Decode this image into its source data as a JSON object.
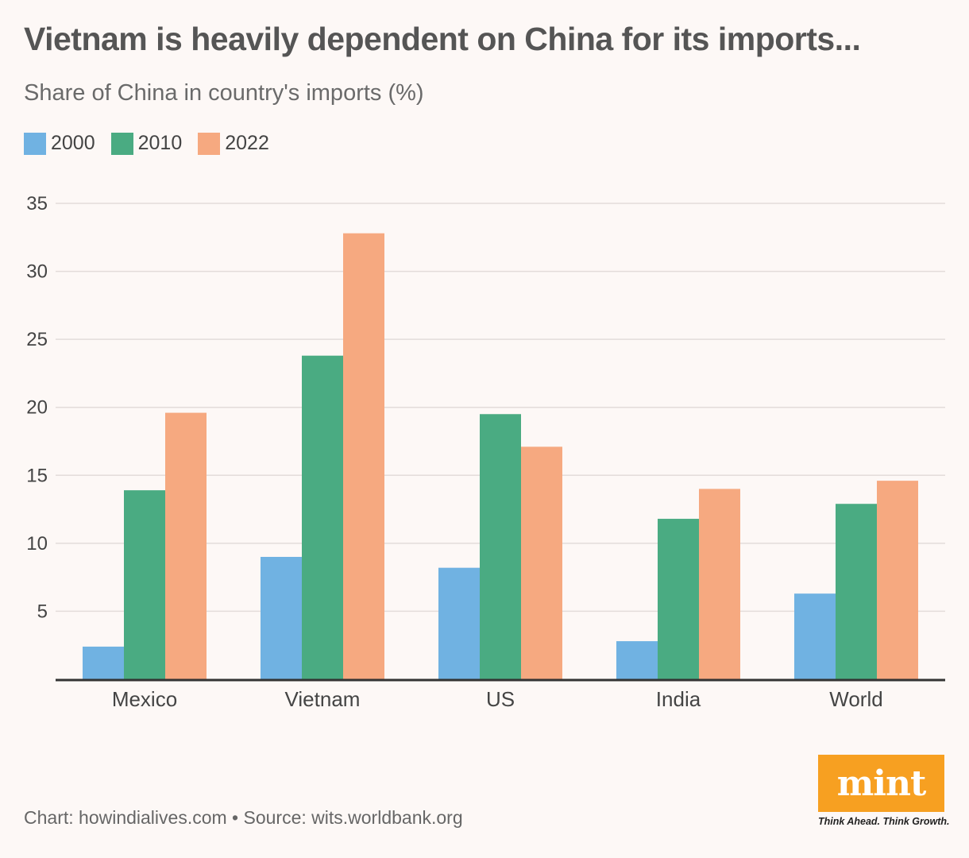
{
  "header": {
    "title": "Vietnam is heavily dependent on China for its imports...",
    "subtitle": "Share of China in country's imports (%)"
  },
  "legend": {
    "items": [
      {
        "label": "2000",
        "color": "#70b2e2"
      },
      {
        "label": "2010",
        "color": "#4aab82"
      },
      {
        "label": "2022",
        "color": "#f6a980"
      }
    ]
  },
  "chart_data": {
    "type": "bar",
    "title": "Vietnam is heavily dependent on China for its imports...",
    "subtitle": "Share of China in country's imports (%)",
    "xlabel": "",
    "ylabel": "",
    "ylim": [
      0,
      35
    ],
    "yticks": [
      5,
      10,
      15,
      20,
      25,
      30,
      35
    ],
    "grid": true,
    "legend_position": "top-left",
    "categories": [
      "Mexico",
      "Vietnam",
      "US",
      "India",
      "World"
    ],
    "series": [
      {
        "name": "2000",
        "color": "#70b2e2",
        "values": [
          2.4,
          9.0,
          8.2,
          2.8,
          6.3
        ]
      },
      {
        "name": "2010",
        "color": "#4aab82",
        "values": [
          13.9,
          23.8,
          19.5,
          11.8,
          12.9
        ]
      },
      {
        "name": "2022",
        "color": "#f6a980",
        "values": [
          19.6,
          32.8,
          17.1,
          14.0,
          14.6
        ]
      }
    ]
  },
  "footer": {
    "credit": "Chart: howindialives.com • Source: wits.worldbank.org"
  },
  "logo": {
    "text": "mint",
    "tagline": "Think Ahead. Think Growth.",
    "color": "#f7a021"
  }
}
